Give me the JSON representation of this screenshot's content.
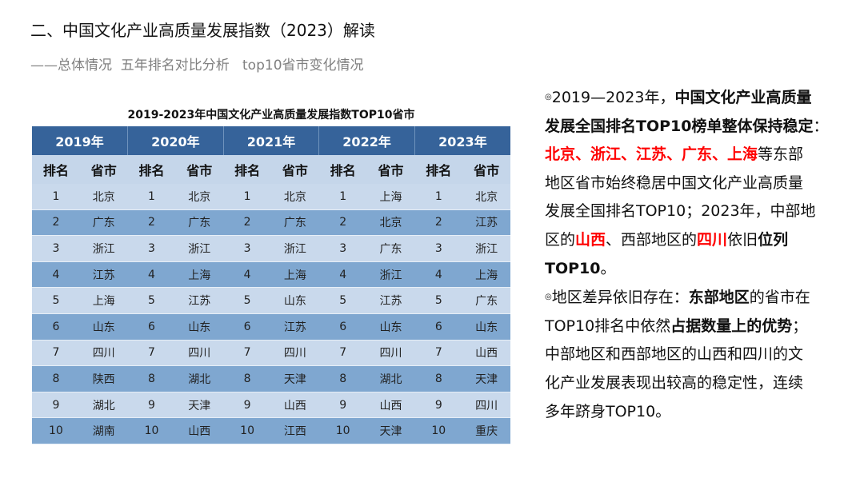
{
  "header": {
    "title": "二、中国文化产业高质量发展指数（2023）解读",
    "subtitle": "——总体情况  五年排名对比分析   top10省市变化情况"
  },
  "table": {
    "title": "2019-2023年中国文化产业高质量发展指数TOP10省市",
    "years": [
      "2019年",
      "2020年",
      "2021年",
      "2022年",
      "2023年"
    ],
    "rank_label": "排名",
    "province_label": "省市",
    "columns": [
      [
        "北京",
        "广东",
        "浙江",
        "江苏",
        "上海",
        "山东",
        "四川",
        "陕西",
        "湖北",
        "湖南"
      ],
      [
        "北京",
        "广东",
        "浙江",
        "上海",
        "江苏",
        "山东",
        "四川",
        "湖北",
        "天津",
        "山西"
      ],
      [
        "北京",
        "广东",
        "浙江",
        "上海",
        "山东",
        "江苏",
        "四川",
        "天津",
        "山西",
        "江西"
      ],
      [
        "上海",
        "北京",
        "广东",
        "浙江",
        "江苏",
        "山东",
        "四川",
        "湖北",
        "山西",
        "天津"
      ],
      [
        "北京",
        "江苏",
        "浙江",
        "上海",
        "广东",
        "山东",
        "山西",
        "天津",
        "四川",
        "重庆"
      ]
    ],
    "ranks": [
      "1",
      "2",
      "3",
      "4",
      "5",
      "6",
      "7",
      "8",
      "9",
      "10"
    ],
    "colors": {
      "header": "#36639a",
      "row_dark": "#7fa7d0",
      "row_light": "#c9d9ec"
    }
  },
  "notes": {
    "bullet_icon": "circle-dot-icon",
    "bullet": "◎",
    "highlight_color": "#ff0000",
    "lines": [
      [
        {
          "t": "◎",
          "s": "m"
        },
        {
          "t": "2019—2023年，",
          "s": ""
        },
        {
          "t": "中国文化产业高质量",
          "s": "b"
        }
      ],
      [
        {
          "t": "发展全国排名TOP10榜单整体保持稳定",
          "s": "b"
        },
        {
          "t": "：",
          "s": ""
        }
      ],
      [
        {
          "t": "北京、浙江、江苏、广东、上海",
          "s": "r"
        },
        {
          "t": "等东部",
          "s": ""
        }
      ],
      [
        {
          "t": "地区省市始终稳居中国文化产业高质量",
          "s": ""
        }
      ],
      [
        {
          "t": "发展全国排名TOP10；2023年，中部地",
          "s": ""
        }
      ],
      [
        {
          "t": "区的",
          "s": ""
        },
        {
          "t": "山西",
          "s": "r"
        },
        {
          "t": "、西部地区的",
          "s": ""
        },
        {
          "t": "四川",
          "s": "r"
        },
        {
          "t": "依旧",
          "s": ""
        },
        {
          "t": "位列",
          "s": "b"
        }
      ],
      [
        {
          "t": "TOP10",
          "s": "b"
        },
        {
          "t": "。",
          "s": ""
        }
      ],
      [
        {
          "t": "◎",
          "s": "m"
        },
        {
          "t": "地区差异依旧存在：",
          "s": ""
        },
        {
          "t": "东部地区",
          "s": "b"
        },
        {
          "t": "的省市在",
          "s": ""
        }
      ],
      [
        {
          "t": "TOP10排名中依然",
          "s": ""
        },
        {
          "t": "占据数量上的优势",
          "s": "b"
        },
        {
          "t": "；",
          "s": ""
        }
      ],
      [
        {
          "t": "中部地区和西部地区的山西和四川的文",
          "s": ""
        }
      ],
      [
        {
          "t": "化产业发展表现出较高的稳定性，连续",
          "s": ""
        }
      ],
      [
        {
          "t": "多年跻身TOP10。",
          "s": ""
        }
      ]
    ]
  }
}
